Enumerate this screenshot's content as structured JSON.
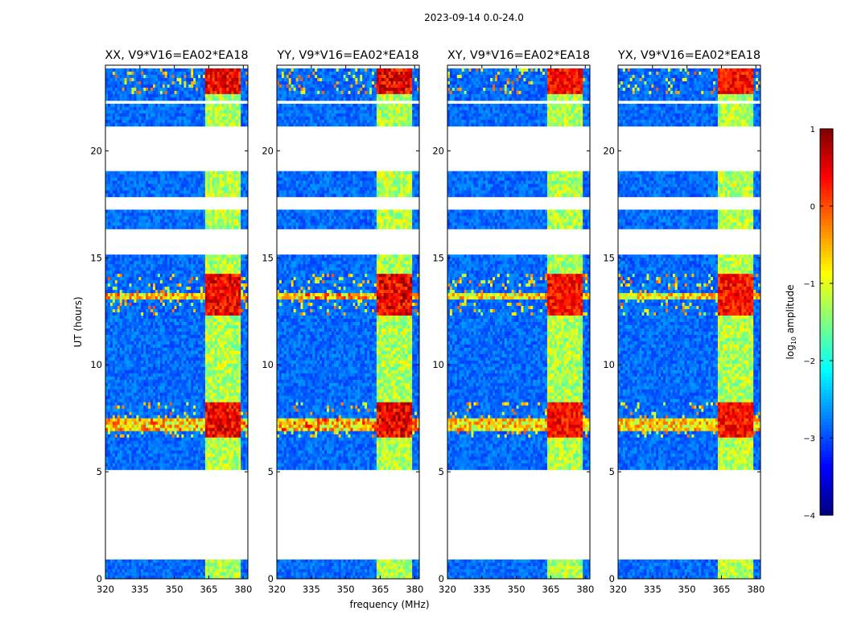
{
  "figure": {
    "suptitle": "2023-09-14 0.0-24.0"
  },
  "chart_data": {
    "type": "heatmap",
    "title": "2023-09-14 0.0-24.0",
    "xlabel": "frequency (MHz)",
    "ylabel": "UT (hours)",
    "xlim": [
      320,
      382
    ],
    "ylim": [
      0,
      24
    ],
    "xticks": [
      320,
      335,
      350,
      365,
      380
    ],
    "yticks": [
      0,
      5,
      10,
      15,
      20
    ],
    "panels": [
      {
        "title": "XX, V9*V16=EA02*EA18",
        "product": "XX",
        "strength": 1.0
      },
      {
        "title": "YY, V9*V16=EA02*EA18",
        "product": "YY",
        "strength": 1.1
      },
      {
        "title": "XY, V9*V16=EA02*EA18",
        "product": "XY",
        "strength": 0.85
      },
      {
        "title": "YX, V9*V16=EA02*EA18",
        "product": "YX",
        "strength": 0.85
      }
    ],
    "data_segments_ut": [
      [
        0.0,
        0.9
      ],
      [
        5.1,
        5.8
      ],
      [
        5.9,
        12.4
      ],
      [
        12.4,
        15.1
      ],
      [
        16.3,
        17.3
      ],
      [
        17.8,
        19.0
      ],
      [
        21.2,
        22.2
      ],
      [
        22.4,
        23.9
      ]
    ],
    "colorbar": {
      "label": "log10 amplitude",
      "label_main": "log",
      "label_sub": "10",
      "label_rest": " amplitude",
      "range": [
        -4,
        1
      ],
      "ticks": [
        1,
        0,
        -1,
        -2,
        -3,
        -4
      ],
      "colormap": "jet"
    },
    "colors": {
      "background": "#ffffff",
      "gap": "#ffffff"
    }
  }
}
